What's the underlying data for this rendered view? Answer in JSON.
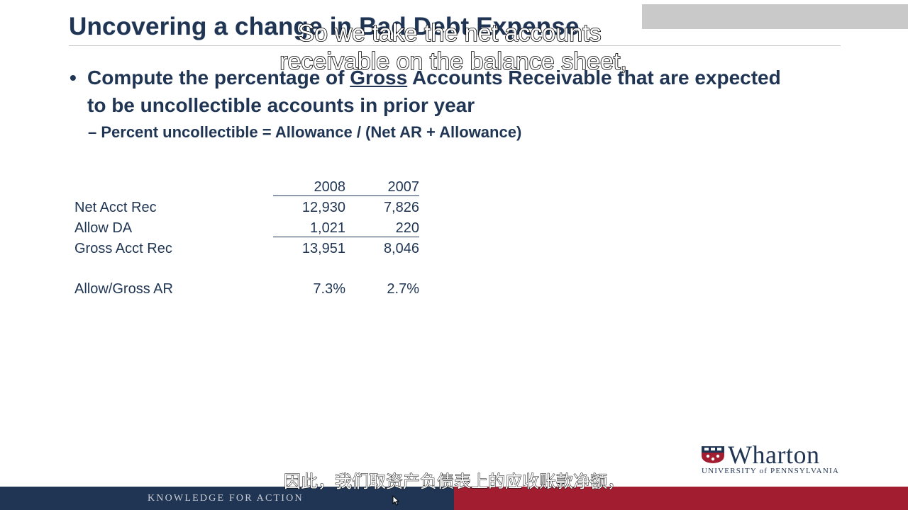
{
  "slide": {
    "title": "Uncovering a change in Bad Debt Expense",
    "bullet_symbol": "•",
    "bullet_before": "Compute the percentage of ",
    "bullet_emphasis": "Gross",
    "bullet_after": " Accounts Receivable that are expected to be uncollectible accounts in prior year",
    "sub_bullet": "– Percent uncollectible = Allowance / (Net AR + Allowance)"
  },
  "table": {
    "headers": [
      "",
      "2008",
      "2007"
    ],
    "rows": [
      {
        "label": "Net Acct Rec",
        "v2008": "12,930",
        "v2007": "7,826"
      },
      {
        "label": "Allow DA",
        "v2008": "1,021",
        "v2007": "220"
      },
      {
        "label": "Gross Acct Rec",
        "v2008": "13,951",
        "v2007": "8,046"
      },
      {
        "label": "Allow/Gross AR",
        "v2008": "7.3%",
        "v2007": "2.7%"
      }
    ]
  },
  "logo": {
    "wordmark": "Wharton",
    "subtitle": "UNIVERSITY of PENNSYLVANIA"
  },
  "footer": {
    "tagline": "KNOWLEDGE FOR ACTION"
  },
  "captions": {
    "english_line1": "So we take the net accounts",
    "english_line2": "receivable on the balance sheet,",
    "chinese": "因此，我们取资产负债表上的应收账款净额，"
  },
  "colors": {
    "navy": "#1f3553",
    "crimson": "#a11d2f",
    "corner_gray": "#c9c9c9"
  },
  "icons": {
    "cursor": "mouse-pointer-icon",
    "logo_shield": "shield-icon"
  }
}
